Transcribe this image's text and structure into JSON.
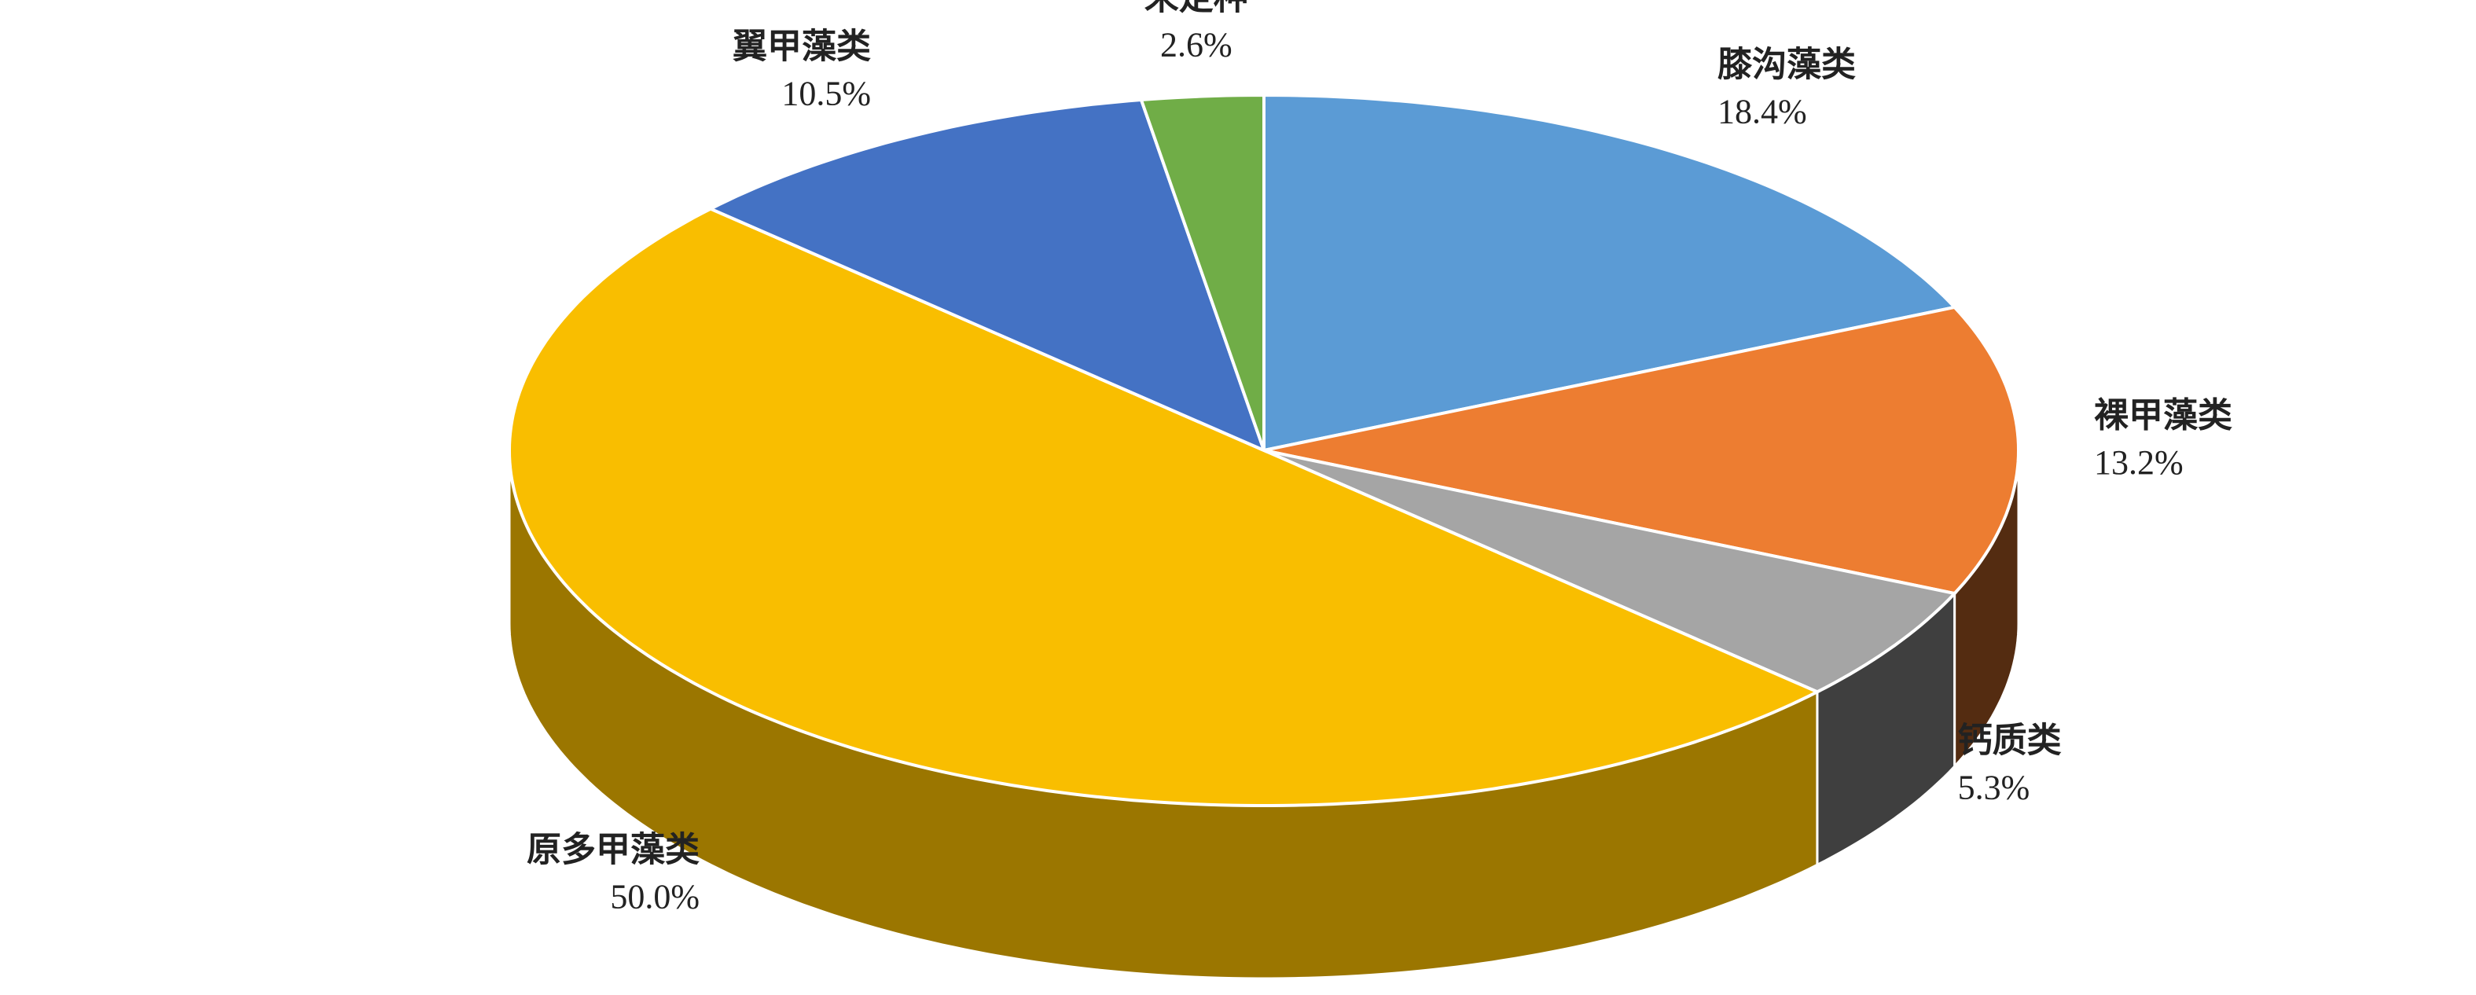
{
  "chart_data": {
    "type": "pie3d",
    "categories": [
      "膝沟藻类",
      "裸甲藻类",
      "钙质类",
      "原多甲藻类",
      "翼甲藻类",
      "未定种"
    ],
    "values": [
      18.4,
      13.2,
      5.3,
      50.0,
      10.5,
      2.6
    ],
    "value_labels": [
      "18.4%",
      "13.2%",
      "5.3%",
      "50.0%",
      "10.5%",
      "2.6%"
    ],
    "colors": [
      "#5b9bd5",
      "#ed7d31",
      "#a5a5a5",
      "#f9be00",
      "#4472c4",
      "#70ad47"
    ]
  }
}
